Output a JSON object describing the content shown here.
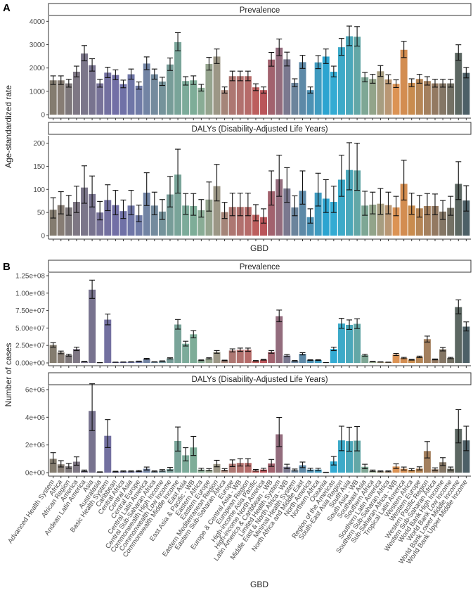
{
  "chart_data": [
    {
      "type": "bar",
      "panel_tag": "A",
      "title": "Prevalence",
      "ylabel": "Age-standardized rate",
      "xlabel": "GBD",
      "ylim": [
        0,
        4100
      ],
      "yticks": [
        0,
        1000,
        2000,
        3000,
        4000
      ],
      "ytick_labels": [
        "0",
        "1000",
        "2000",
        "3000",
        "4000"
      ],
      "values": [
        1470,
        1470,
        1340,
        1840,
        2620,
        2120,
        1340,
        1800,
        1700,
        1310,
        1730,
        1240,
        2190,
        1730,
        1420,
        2150,
        3110,
        1440,
        1470,
        1150,
        2170,
        2490,
        1050,
        1650,
        1650,
        1650,
        1170,
        1050,
        2360,
        2870,
        2370,
        1360,
        2250,
        1050,
        2240,
        2490,
        1840,
        2890,
        3360,
        3340,
        1600,
        1530,
        1860,
        1510,
        1320,
        2780,
        1360,
        1530,
        1440,
        1340,
        1340,
        1340,
        2650,
        1790
      ],
      "ci_ratio": [
        0.88,
        1.13
      ]
    },
    {
      "type": "bar",
      "panel_tag": "",
      "title": "DALYs (Disability-Adjusted Life Years)",
      "ylim": [
        0,
        210
      ],
      "yticks": [
        0,
        50,
        100,
        150,
        200
      ],
      "ytick_labels": [
        "0",
        "50",
        "100",
        "150",
        "200"
      ],
      "values": [
        56,
        66,
        61,
        73,
        104,
        90,
        50,
        77,
        66,
        53,
        65,
        44,
        93,
        65,
        52,
        89,
        132,
        65,
        64,
        55,
        78,
        107,
        51,
        62,
        62,
        62,
        45,
        40,
        96,
        122,
        102,
        61,
        97,
        40,
        93,
        80,
        73,
        121,
        142,
        141,
        65,
        67,
        69,
        66,
        61,
        112,
        65,
        59,
        64,
        64,
        52,
        60,
        112,
        76
      ],
      "lower": [
        38,
        47,
        44,
        50,
        70,
        62,
        34,
        54,
        45,
        37,
        45,
        30,
        65,
        45,
        35,
        62,
        92,
        46,
        44,
        40,
        53,
        75,
        37,
        43,
        43,
        43,
        32,
        27,
        66,
        85,
        72,
        43,
        68,
        27,
        64,
        50,
        50,
        85,
        99,
        98,
        44,
        47,
        46,
        47,
        43,
        77,
        46,
        40,
        45,
        45,
        35,
        44,
        78,
        53
      ],
      "upper": [
        82,
        95,
        87,
        107,
        151,
        129,
        74,
        110,
        98,
        77,
        98,
        66,
        136,
        94,
        78,
        128,
        187,
        91,
        91,
        78,
        116,
        154,
        72,
        92,
        92,
        92,
        67,
        58,
        140,
        174,
        147,
        86,
        140,
        58,
        135,
        121,
        107,
        174,
        201,
        200,
        96,
        94,
        102,
        94,
        85,
        163,
        92,
        87,
        91,
        90,
        76,
        85,
        160,
        108
      ]
    },
    {
      "type": "bar",
      "panel_tag": "B",
      "title": "Prevalence",
      "ylabel": "Number of cases",
      "xlabel": "GBD",
      "ylim": [
        0,
        125000000
      ],
      "yticks": [
        0,
        25000000,
        50000000,
        75000000,
        100000000,
        125000000
      ],
      "ytick_labels": [
        "0.00e+00",
        "2.50e+07",
        "5.00e+07",
        "7.50e+07",
        "1.00e+08",
        "1.25e+08"
      ],
      "values": [
        25700000,
        15000000,
        11000000,
        20000000,
        2000000,
        105000000,
        400000,
        62000000,
        1000000,
        1200000,
        1500000,
        2300000,
        5800000,
        1500000,
        2600000,
        6500000,
        55000000,
        27500000,
        41000000,
        3800000,
        6500000,
        15700000,
        3500000,
        17800000,
        18800000,
        18800000,
        3000000,
        4500000,
        15700000,
        67000000,
        10600000,
        3000000,
        13000000,
        4000000,
        4000000,
        500000,
        20000000,
        56500000,
        54500000,
        56000000,
        11000000,
        2000000,
        1400000,
        1000000,
        12000000,
        7000000,
        4500000,
        8600000,
        34000000,
        5000000,
        19500000,
        7000000,
        80000000,
        52000000
      ],
      "ci_ratio": [
        0.88,
        1.13
      ]
    },
    {
      "type": "bar",
      "panel_tag": "",
      "title": "DALYs (Disability-Adjusted Life Years)",
      "ylim": [
        0,
        6100000
      ],
      "yticks": [
        0,
        2000000,
        4000000,
        6000000
      ],
      "ytick_labels": [
        "0e+00",
        "2e+06",
        "4e+06",
        "6e+06"
      ],
      "values": [
        1000000,
        600000,
        460000,
        790000,
        130000,
        4460000,
        40000,
        2660000,
        70000,
        90000,
        90000,
        110000,
        280000,
        90000,
        150000,
        260000,
        2290000,
        1250000,
        1820000,
        220000,
        200000,
        620000,
        200000,
        640000,
        700000,
        700000,
        160000,
        220000,
        660000,
        2770000,
        420000,
        180000,
        530000,
        220000,
        220000,
        20000,
        810000,
        2330000,
        2280000,
        2310000,
        420000,
        130000,
        90000,
        90000,
        440000,
        280000,
        200000,
        290000,
        1560000,
        240000,
        750000,
        280000,
        3160000,
        2330000
      ],
      "ci_ratio": [
        0.68,
        1.44
      ]
    }
  ],
  "categories": [
    "Advanced Health System",
    "Africa",
    "African Region",
    "America",
    "Andean Latin America",
    "Asia",
    "Australasia",
    "Basic Health System",
    "Caribbean",
    "Central Africa",
    "Central Asia",
    "Central Europe",
    "Central Latin America",
    "Central Sub-Saharan Africa",
    "Commonwealth High Income",
    "Commonwealth Low Income",
    "Commonwealth Middle Income",
    "East Asia",
    "East Asia & Pacific - WB",
    "Eastern Africa",
    "Eastern Europe",
    "Eastern Mediterranean Region",
    "Eastern Sub-Saharan Africa",
    "Europe",
    "Europe & Central Asia - WB",
    "European Region",
    "High-income Asia Pacific",
    "High-income North America",
    "Latin America & Caribbean - WB",
    "Limited Health System",
    "Middle East & North Africa - WB",
    "Minimal Health System",
    "North Africa and Middle East",
    "North America",
    "Northern Africa",
    "Oceania",
    "Region of the Americas",
    "South-East Asia Region",
    "South Asia",
    "South Asia - WB",
    "Southeast Asia",
    "Southern Africa",
    "Southern Latin America",
    "Southern Sub-Saharan Africa",
    "Sub-Saharan Africa - WB",
    "Tropical Latin America",
    "Western Africa",
    "Western Europe",
    "Western Pacific Region",
    "Western Sub-Saharan Africa",
    "World Bank High Income",
    "World Bank Low Income",
    "World Bank Lower Middle Income",
    "World Bank Upper Middle Income"
  ],
  "colors": [
    "#7a7163",
    "#7d7268",
    "#736c70",
    "#736b7a",
    "#706a80",
    "#6d6785",
    "#6c6790",
    "#676498",
    "#66639e",
    "#6465a0",
    "#636aa0",
    "#6470a0",
    "#66799c",
    "#688196",
    "#698a92",
    "#6b948f",
    "#6e9c90",
    "#71a491",
    "#73a68f",
    "#7fa58c",
    "#8c9c84",
    "#948e7c",
    "#9d7b6e",
    "#a66b66",
    "#aa6562",
    "#b05e5c",
    "#b6504f",
    "#b4474c",
    "#9a5562",
    "#8a5f72",
    "#6f6d86",
    "#5e7a94",
    "#4f7fa0",
    "#3f88ac",
    "#2f92bb",
    "#1a9ccc",
    "#22a4cf",
    "#2ba3c4",
    "#3ba0b4",
    "#56a09e",
    "#73a08c",
    "#899c80",
    "#a09575",
    "#b38e68",
    "#d98a45",
    "#cf8342",
    "#c4823f",
    "#b07c48",
    "#9c7550",
    "#8a6e55",
    "#7a6a58",
    "#686558",
    "#4e5a55",
    "#3e525a"
  ]
}
